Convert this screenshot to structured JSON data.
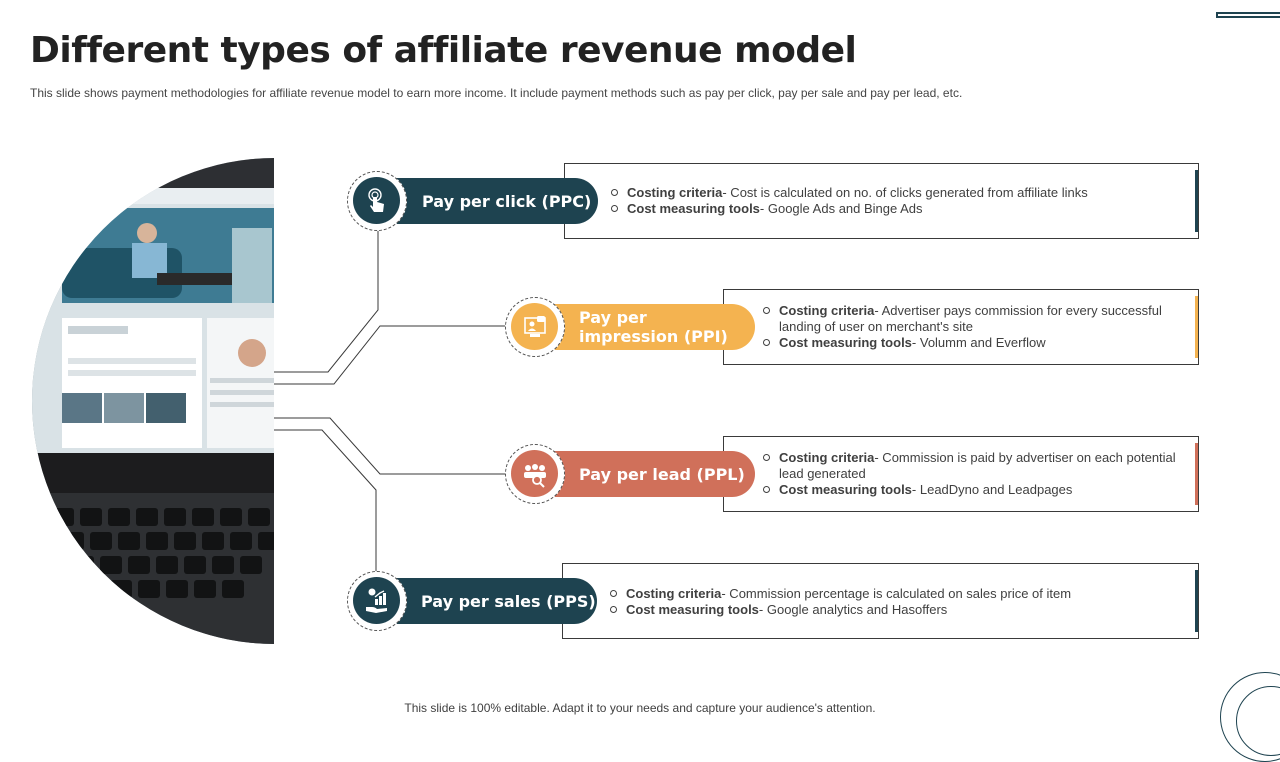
{
  "title": "Different types of affiliate revenue model",
  "subtitle": "This slide shows payment methodologies for affiliate revenue model to earn more income. It include payment methods such as pay per click, pay per sale and pay per lead, etc.",
  "footer": "This slide is 100% editable. Adapt it to your needs and capture your audience's attention.",
  "colors": {
    "dark_teal": "#1e4350",
    "amber": "#f4b350",
    "terracotta": "#d0705a"
  },
  "items": [
    {
      "label": "Pay per click (PPC)",
      "icon": "hand-pointer-icon",
      "color": "#1e4350",
      "points": [
        {
          "term": "Costing criteria",
          "text": "- Cost is calculated on no. of clicks generated from affiliate links"
        },
        {
          "term": "Cost measuring tools",
          "text": "- Google Ads and Binge Ads"
        }
      ]
    },
    {
      "label": "Pay per impression (PPI)",
      "label_line1": "Pay per",
      "label_line2": "impression (PPI)",
      "icon": "presentation-screen-icon",
      "color": "#f4b350",
      "points": [
        {
          "term": "Costing criteria",
          "text": "- Advertiser pays commission for every successful landing of user on merchant's site"
        },
        {
          "term": "Cost measuring tools",
          "text": "- Volumm and Everflow"
        }
      ]
    },
    {
      "label": "Pay per lead (PPL)",
      "icon": "people-magnifier-icon",
      "color": "#d0705a",
      "points": [
        {
          "term": "Costing criteria",
          "text": "- Commission is paid by advertiser on each potential lead generated"
        },
        {
          "term": "Cost measuring tools",
          "text": "-  LeadDyno and Leadpages"
        }
      ]
    },
    {
      "label": "Pay per sales (PPS)",
      "icon": "money-growth-hand-icon",
      "color": "#1e4350",
      "points": [
        {
          "term": "Costing criteria",
          "text": "- Commission percentage is calculated on sales price of item"
        },
        {
          "term": "Cost measuring tools",
          "text": "- Google analytics and Hasoffers"
        }
      ]
    }
  ]
}
